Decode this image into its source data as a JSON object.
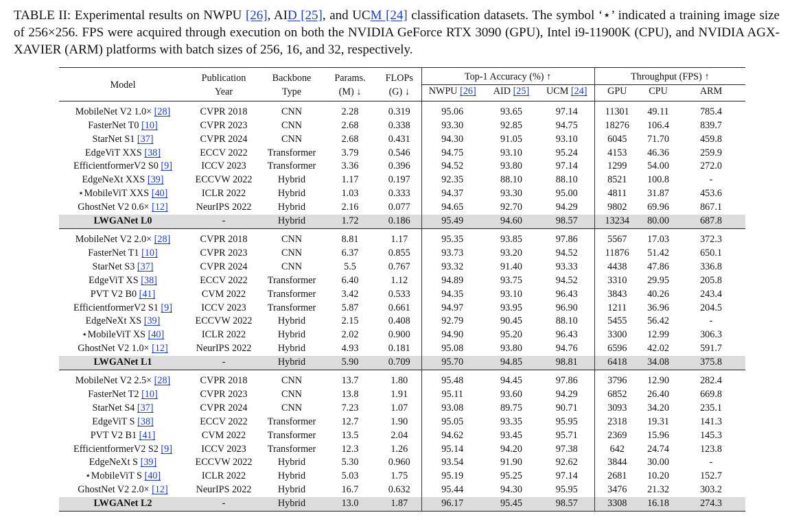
{
  "caption": {
    "p1": "TABLE II: Experimental results on NWPU ",
    "r1": "[26]",
    "p2": ", AI",
    "r2": "D [25]",
    "p3": ", and UC",
    "r3": "M [24]",
    "p4": " classification datasets. The symbol ‘⋆’ indicated a training image size of 256×256. FPS were acquired through execution on both the NVIDIA GeForce RTX 3090 (GPU), Intel i9-11900K (CPU), and NVIDIA AGX-XAVIER (ARM) platforms with batch sizes of 256, 16, and 32, respectively."
  },
  "header": {
    "model": "Model",
    "pub_1": "Publication",
    "pub_2": "Year",
    "bb_1": "Backbone",
    "bb_2": "Type",
    "params_1": "Params.",
    "params_2": "(M) ↓",
    "flops_1": "FLOPs",
    "flops_2": "(G) ↓",
    "acc_group": "Top-1 Accuracy (%) ↑",
    "nwpu": "NWPU",
    "nwpu_ref": "[26]",
    "aid": "AID",
    "aid_ref": "[25]",
    "ucm": "UCM",
    "ucm_ref": "[24]",
    "fps_group": "Throughput (FPS) ↑",
    "gpu": "GPU",
    "cpu": "CPU",
    "arm": "ARM"
  },
  "groups": [
    {
      "rows": [
        {
          "model": "MobileNet V2 1.0× ",
          "ref": "[28]",
          "year": "CVPR 2018",
          "type": "CNN",
          "params": "2.28",
          "flops": "0.319",
          "nwpu": "95.06",
          "aid": "93.65",
          "ucm": "97.14",
          "gpu": "11301",
          "cpu": "49.11",
          "arm": "785.4"
        },
        {
          "model": "FasterNet T0 ",
          "ref": "[10]",
          "year": "CVPR 2023",
          "type": "CNN",
          "params": "2.68",
          "flops": "0.338",
          "nwpu": "93.30",
          "aid": "92.85",
          "ucm": "94.75",
          "gpu": "18276",
          "cpu": "106.4",
          "arm": "839.7"
        },
        {
          "model": "StarNet S1 ",
          "ref": "[37]",
          "year": "CVPR 2024",
          "type": "CNN",
          "params": "2.68",
          "flops": "0.431",
          "nwpu": "94.30",
          "aid": "91.05",
          "ucm": "93.10",
          "gpu": "6045",
          "cpu": "71.70",
          "arm": "459.8"
        },
        {
          "model": "EdgeViT XXS ",
          "ref": "[38]",
          "year": "ECCV 2022",
          "type": "Transformer",
          "params": "3.79",
          "flops": "0.546",
          "nwpu": "94.75",
          "aid": "93.10",
          "ucm": "95.24",
          "gpu": "4153",
          "cpu": "46.36",
          "arm": "259.9"
        },
        {
          "model": "EfficientformerV2 S0 ",
          "ref": "[9]",
          "year": "ICCV 2023",
          "type": "Transformer",
          "params": "3.36",
          "flops": "0.396",
          "nwpu": "94.52",
          "aid": "93.80",
          "ucm": "97.14",
          "gpu": "1299",
          "cpu": "54.00",
          "arm": "272.0"
        },
        {
          "model": "EdgeNeXt XXS ",
          "ref": "[39]",
          "year": "ECCVW 2022",
          "type": "Hybrid",
          "params": "1.17",
          "flops": "0.197",
          "nwpu": "92.35",
          "aid": "88.10",
          "ucm": "88.10",
          "gpu": "8521",
          "cpu": "100.8",
          "arm": "-"
        },
        {
          "model": "⋆MobileViT XXS ",
          "ref": "[40]",
          "year": "ICLR 2022",
          "type": "Hybrid",
          "params": "1.03",
          "flops": "0.333",
          "nwpu": "94.37",
          "aid": "93.30",
          "ucm": "95.00",
          "gpu": "4811",
          "cpu": "31.87",
          "arm": "453.6"
        },
        {
          "model": "GhostNet V2 0.6× ",
          "ref": "[12]",
          "year": "NeurIPS 2022",
          "type": "Hybrid",
          "params": "2.16",
          "flops": "0.077",
          "nwpu": "94.65",
          "aid": "92.70",
          "ucm": "94.29",
          "gpu": "9802",
          "cpu": "69.96",
          "arm": "867.1"
        }
      ],
      "ours": {
        "model": "LWGANet L0",
        "year": "-",
        "type": "Hybrid",
        "params": "1.72",
        "flops": "0.186",
        "nwpu": "95.49",
        "aid": "94.60",
        "ucm": "98.57",
        "gpu": "13234",
        "cpu": "80.00",
        "arm": "687.8"
      }
    },
    {
      "rows": [
        {
          "model": "MobileNet V2 2.0× ",
          "ref": "[28]",
          "year": "CVPR 2018",
          "type": "CNN",
          "params": "8.81",
          "flops": "1.17",
          "nwpu": "95.35",
          "aid": "93.85",
          "ucm": "97.86",
          "gpu": "5567",
          "cpu": "17.03",
          "arm": "372.3"
        },
        {
          "model": "FasterNet T1 ",
          "ref": "[10]",
          "year": "CVPR 2023",
          "type": "CNN",
          "params": "6.37",
          "flops": "0.855",
          "nwpu": "93.73",
          "aid": "93.20",
          "ucm": "94.52",
          "gpu": "11876",
          "cpu": "51.42",
          "arm": "650.1"
        },
        {
          "model": "StarNet S3 ",
          "ref": "[37]",
          "year": "CVPR 2024",
          "type": "CNN",
          "params": "5.5",
          "flops": "0.767",
          "nwpu": "93.32",
          "aid": "91.40",
          "ucm": "93.33",
          "gpu": "4438",
          "cpu": "47.86",
          "arm": "336.8"
        },
        {
          "model": "EdgeViT XS ",
          "ref": "[38]",
          "year": "ECCV 2022",
          "type": "Transformer",
          "params": "6.40",
          "flops": "1.12",
          "nwpu": "94.89",
          "aid": "93.75",
          "ucm": "94.52",
          "gpu": "3310",
          "cpu": "29.95",
          "arm": "205.8"
        },
        {
          "model": "PVT V2 B0 ",
          "ref": "[41]",
          "year": "CVM 2022",
          "type": "Transformer",
          "params": "3.42",
          "flops": "0.533",
          "nwpu": "94.35",
          "aid": "93.10",
          "ucm": "96.43",
          "gpu": "3843",
          "cpu": "40.26",
          "arm": "243.4"
        },
        {
          "model": "EfficientformerV2 S1 ",
          "ref": "[9]",
          "year": "ICCV 2023",
          "type": "Transformer",
          "params": "5.87",
          "flops": "0.661",
          "nwpu": "94.97",
          "aid": "93.95",
          "ucm": "96.90",
          "gpu": "1211",
          "cpu": "36.96",
          "arm": "204.5"
        },
        {
          "model": "EdgeNeXt XS ",
          "ref": "[39]",
          "year": "ECCVW 2022",
          "type": "Hybrid",
          "params": "2.15",
          "flops": "0.408",
          "nwpu": "92.79",
          "aid": "90.45",
          "ucm": "88.10",
          "gpu": "5455",
          "cpu": "56.42",
          "arm": "-"
        },
        {
          "model": "⋆MobileViT XS ",
          "ref": "[40]",
          "year": "ICLR 2022",
          "type": "Hybrid",
          "params": "2.02",
          "flops": "0.900",
          "nwpu": "94.90",
          "aid": "95.20",
          "ucm": "96.43",
          "gpu": "3300",
          "cpu": "12.99",
          "arm": "306.3"
        },
        {
          "model": "GhostNet V2 1.0× ",
          "ref": "[12]",
          "year": "NeurIPS 2022",
          "type": "Hybrid",
          "params": "4.93",
          "flops": "0.181",
          "nwpu": "95.08",
          "aid": "93.80",
          "ucm": "94.76",
          "gpu": "6596",
          "cpu": "42.02",
          "arm": "591.7"
        }
      ],
      "ours": {
        "model": "LWGANet L1",
        "year": "-",
        "type": "Hybrid",
        "params": "5.90",
        "flops": "0.709",
        "nwpu": "95.70",
        "aid": "94.85",
        "ucm": "98.81",
        "gpu": "6418",
        "cpu": "34.08",
        "arm": "375.8"
      }
    },
    {
      "rows": [
        {
          "model": "MobileNet V2 2.5× ",
          "ref": "[28]",
          "year": "CVPR 2018",
          "type": "CNN",
          "params": "13.7",
          "flops": "1.80",
          "nwpu": "95.48",
          "aid": "94.45",
          "ucm": "97.86",
          "gpu": "3796",
          "cpu": "12.90",
          "arm": "282.4"
        },
        {
          "model": "FasterNet T2 ",
          "ref": "[10]",
          "year": "CVPR 2023",
          "type": "CNN",
          "params": "13.8",
          "flops": "1.91",
          "nwpu": "95.11",
          "aid": "93.60",
          "ucm": "94.29",
          "gpu": "6852",
          "cpu": "26.40",
          "arm": "669.8"
        },
        {
          "model": "StarNet S4 ",
          "ref": "[37]",
          "year": "CVPR 2024",
          "type": "CNN",
          "params": "7.23",
          "flops": "1.07",
          "nwpu": "93.08",
          "aid": "89.75",
          "ucm": "90.71",
          "gpu": "3093",
          "cpu": "34.20",
          "arm": "235.1"
        },
        {
          "model": "EdgeViT S ",
          "ref": "[38]",
          "year": "ECCV 2022",
          "type": "Transformer",
          "params": "12.7",
          "flops": "1.90",
          "nwpu": "95.05",
          "aid": "93.35",
          "ucm": "95.95",
          "gpu": "2318",
          "cpu": "19.31",
          "arm": "141.3"
        },
        {
          "model": "PVT V2 B1 ",
          "ref": "[41]",
          "year": "CVM 2022",
          "type": "Transformer",
          "params": "13.5",
          "flops": "2.04",
          "nwpu": "94.62",
          "aid": "93.45",
          "ucm": "95.71",
          "gpu": "2369",
          "cpu": "15.96",
          "arm": "145.3"
        },
        {
          "model": "EfficientformerV2 S2 ",
          "ref": "[9]",
          "year": "ICCV 2023",
          "type": "Transformer",
          "params": "12.3",
          "flops": "1.26",
          "nwpu": "95.14",
          "aid": "94.20",
          "ucm": "97.38",
          "gpu": "642",
          "cpu": "24.74",
          "arm": "123.8"
        },
        {
          "model": "EdgeNeXt S ",
          "ref": "[39]",
          "year": "ECCVW 2022",
          "type": "Hybrid",
          "params": "5.30",
          "flops": "0.960",
          "nwpu": "93.54",
          "aid": "91.90",
          "ucm": "92.62",
          "gpu": "3844",
          "cpu": "30.00",
          "arm": "-"
        },
        {
          "model": "⋆MobileViT S ",
          "ref": "[40]",
          "year": "ICLR 2022",
          "type": "Hybrid",
          "params": "5.03",
          "flops": "1.75",
          "nwpu": "95.19",
          "aid": "95.25",
          "ucm": "97.14",
          "gpu": "2681",
          "cpu": "10.20",
          "arm": "152.7"
        },
        {
          "model": "GhostNet V2 2.0× ",
          "ref": "[12]",
          "year": "NeurIPS 2022",
          "type": "Hybrid",
          "params": "16.7",
          "flops": "0.632",
          "nwpu": "95.44",
          "aid": "94.30",
          "ucm": "95.95",
          "gpu": "3476",
          "cpu": "21.32",
          "arm": "303.2"
        }
      ],
      "ours": {
        "model": "LWGANet L2",
        "year": "-",
        "type": "Hybrid",
        "params": "13.0",
        "flops": "1.87",
        "nwpu": "96.17",
        "aid": "95.45",
        "ucm": "98.57",
        "gpu": "3308",
        "cpu": "16.18",
        "arm": "274.3"
      }
    }
  ],
  "colors": {
    "link": "#1a3cc8",
    "highlight_row": "#dcdcdc"
  }
}
